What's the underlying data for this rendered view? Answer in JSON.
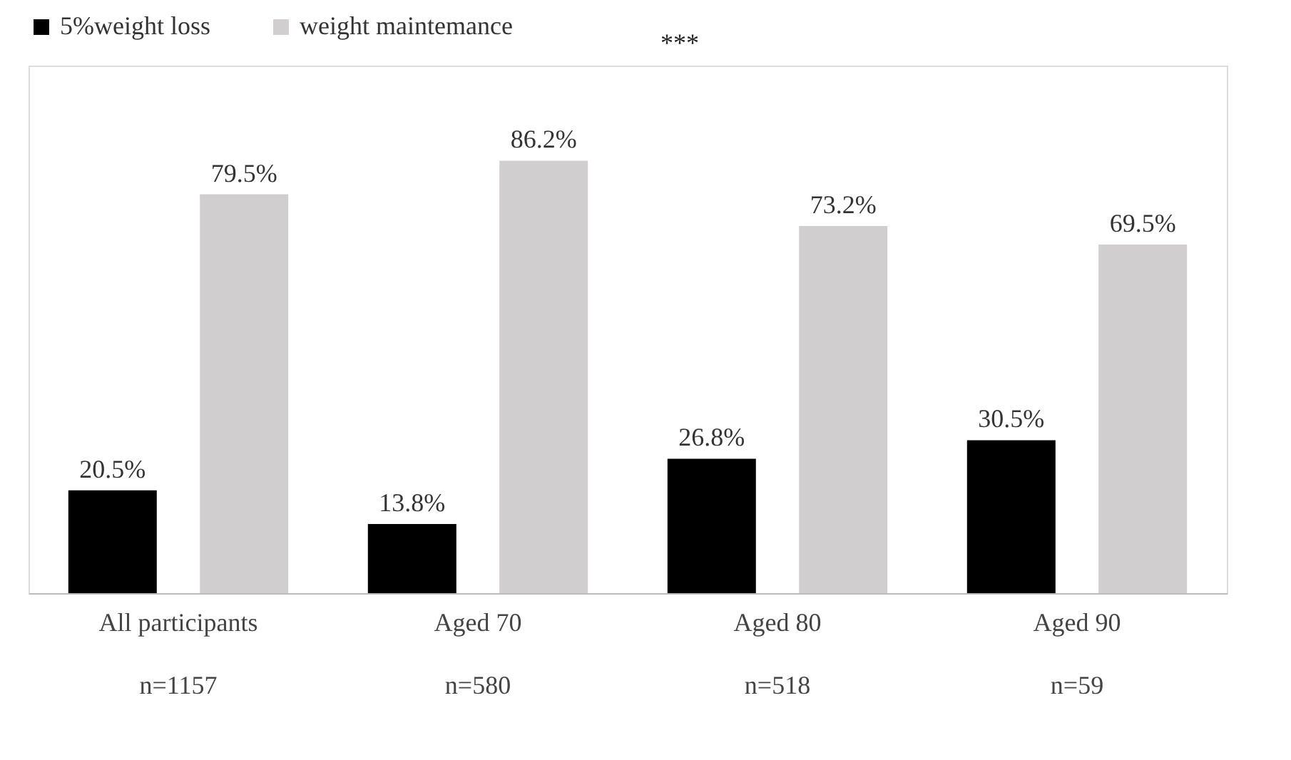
{
  "chart_data": {
    "type": "bar",
    "categories": [
      "All participants\nn=1157",
      "Aged 70\nn=580",
      "Aged  80\nn=518",
      "Aged  90\nn=59"
    ],
    "series": [
      {
        "name": "5%weight loss",
        "color": "#000000",
        "values": [
          20.5,
          13.8,
          26.8,
          30.5
        ],
        "value_labels": [
          "20.5%",
          "13.8%",
          "26.8%",
          "30.5%"
        ]
      },
      {
        "name": "weight maintemance",
        "color": "#d0cece",
        "values": [
          79.5,
          86.2,
          73.2,
          69.5
        ],
        "value_labels": [
          "79.5%",
          "86.2%",
          "73.2%",
          "69.5%"
        ]
      }
    ],
    "annotations": [
      "***"
    ],
    "legend": "top",
    "grid": false
  }
}
